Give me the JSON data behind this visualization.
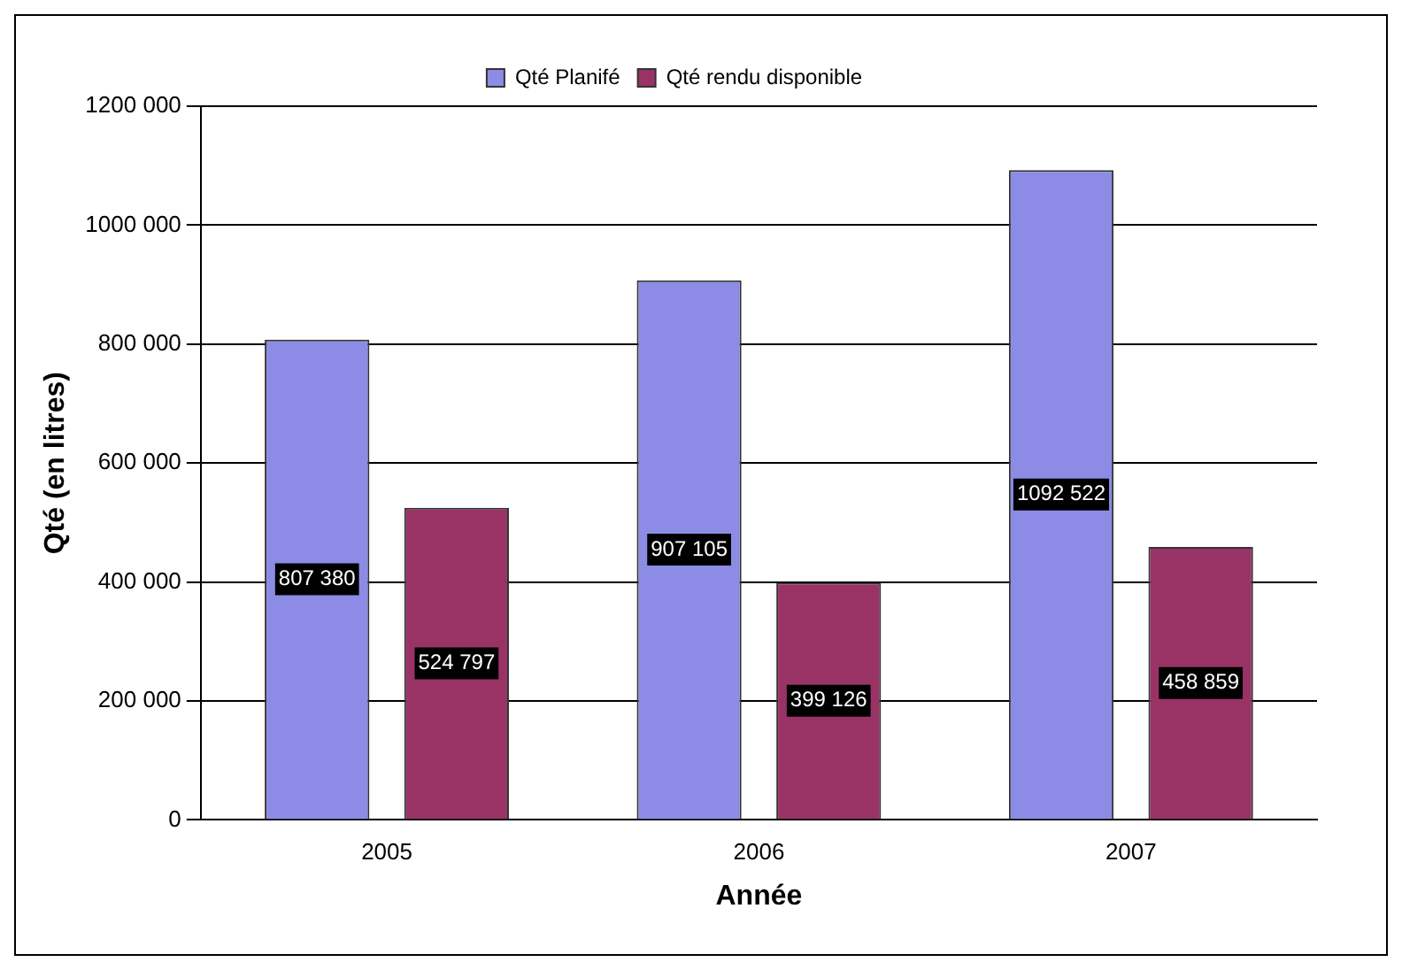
{
  "chart_data": {
    "type": "bar",
    "xlabel": "Année",
    "ylabel": "Qté (en litres)",
    "categories": [
      "2005",
      "2006",
      "2007"
    ],
    "series": [
      {
        "name": "Qté Planifé",
        "color": "#8c8ce6",
        "values": [
          807380,
          907105,
          1092522
        ],
        "value_labels": [
          "807 380",
          "907 105",
          "1092 522"
        ]
      },
      {
        "name": "Qté rendu disponible",
        "color": "#993366",
        "values": [
          524797,
          399126,
          458859
        ],
        "value_labels": [
          "524 797",
          "399 126",
          "458 859"
        ]
      }
    ],
    "ylim": [
      0,
      1200000
    ],
    "yticks": [
      {
        "value": 0,
        "label": "0"
      },
      {
        "value": 200000,
        "label": "200 000"
      },
      {
        "value": 400000,
        "label": "400 000"
      },
      {
        "value": 600000,
        "label": "600 000"
      },
      {
        "value": 800000,
        "label": "800 000"
      },
      {
        "value": 1000000,
        "label": "1000 000"
      },
      {
        "value": 1200000,
        "label": "1200 000"
      }
    ],
    "grid": "y",
    "legend": "top"
  }
}
